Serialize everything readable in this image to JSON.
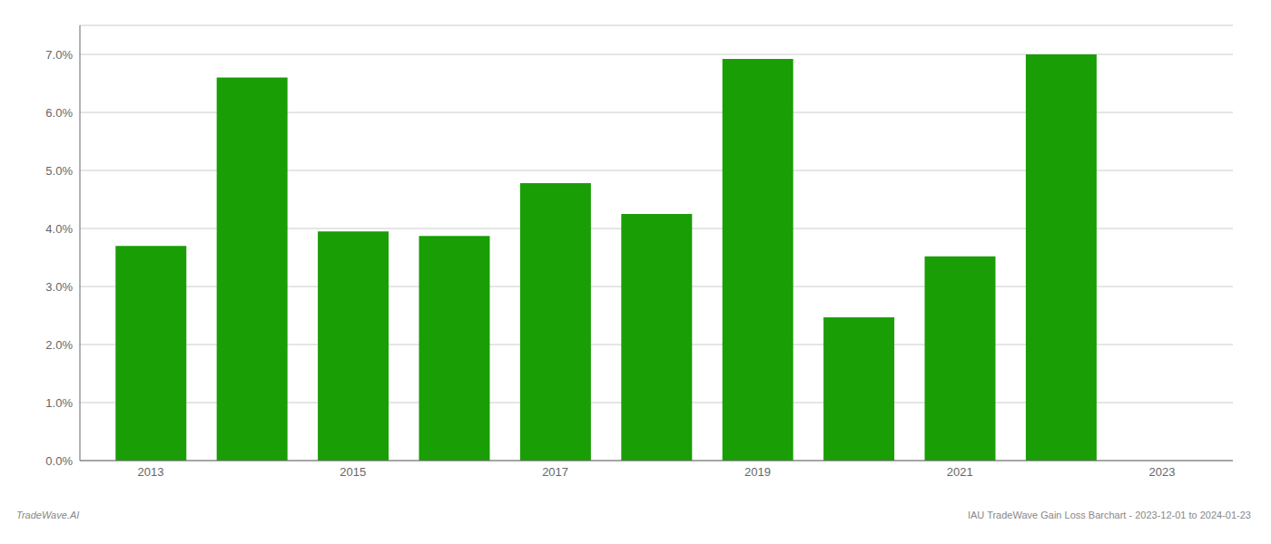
{
  "chart_data": {
    "type": "bar",
    "x": [
      2013,
      2014,
      2015,
      2016,
      2017,
      2018,
      2019,
      2020,
      2021,
      2022
    ],
    "values": [
      0.037,
      0.066,
      0.0395,
      0.0387,
      0.0478,
      0.0425,
      0.0692,
      0.0247,
      0.0352,
      0.07
    ],
    "color": "#1a9e06",
    "xlim": [
      2012.3,
      2023.7
    ],
    "xticks": [
      2013,
      2015,
      2017,
      2019,
      2021,
      2023
    ],
    "ylim": [
      0.0,
      0.075
    ],
    "yticks": [
      {
        "value": 0.0,
        "label": "0.0%"
      },
      {
        "value": 0.01,
        "label": "1.0%"
      },
      {
        "value": 0.02,
        "label": "2.0%"
      },
      {
        "value": 0.03,
        "label": "3.0%"
      },
      {
        "value": 0.04,
        "label": "4.0%"
      },
      {
        "value": 0.05,
        "label": "5.0%"
      },
      {
        "value": 0.06,
        "label": "6.0%"
      },
      {
        "value": 0.07,
        "label": "7.0%"
      }
    ],
    "grid": true,
    "annotations": [
      "TradeWave.AI",
      "IAU TradeWave Gain Loss Barchart - 2023-12-01 to 2024-01-23"
    ]
  }
}
